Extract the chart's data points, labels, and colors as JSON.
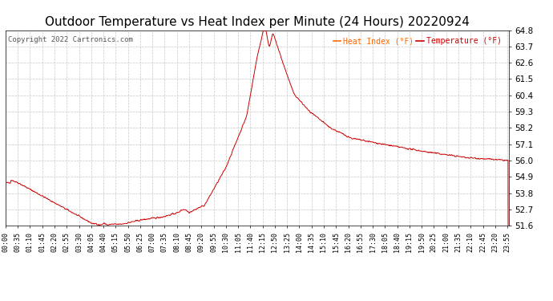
{
  "title": "Outdoor Temperature vs Heat Index per Minute (24 Hours) 20220924",
  "copyright": "Copyright 2022 Cartronics.com",
  "legend_heat": "Heat Index (°F)",
  "legend_temp": "Temperature (°F)",
  "line_color": "#cc0000",
  "background_color": "#ffffff",
  "grid_color": "#c8c8c8",
  "yticks": [
    51.6,
    52.7,
    53.8,
    54.9,
    56.0,
    57.1,
    58.2,
    59.3,
    60.4,
    61.5,
    62.6,
    63.7,
    64.8
  ],
  "ylim": [
    51.6,
    64.8
  ],
  "title_fontsize": 11,
  "axis_fontsize": 7,
  "copyright_color": "#555555",
  "legend_color_heat": "#ff6600",
  "legend_color_temp": "#cc0000",
  "fig_width": 6.9,
  "fig_height": 3.75,
  "dpi": 100
}
